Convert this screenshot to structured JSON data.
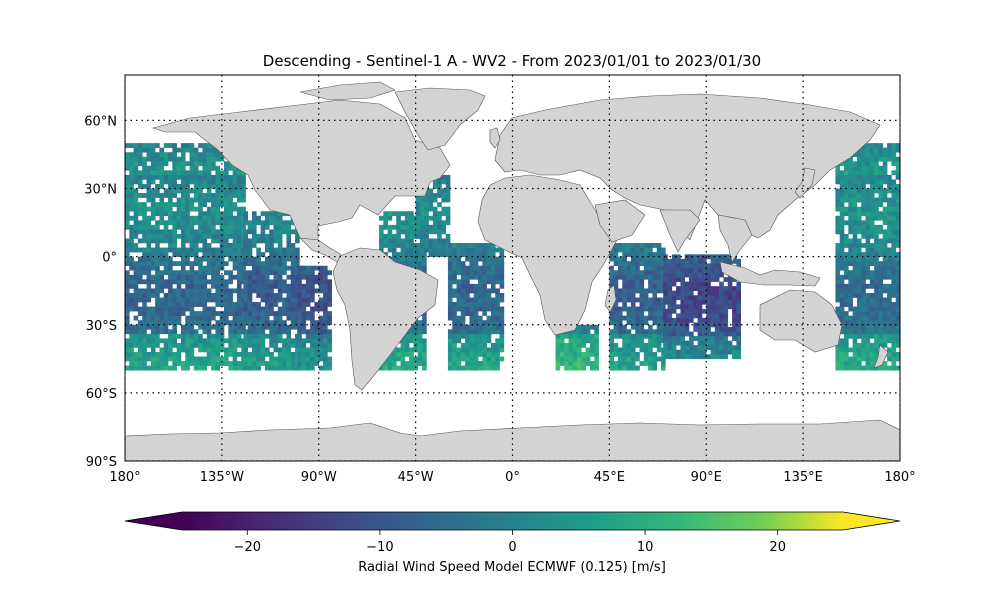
{
  "title": "Descending - Sentinel-1 A - WV2 - From 2023/01/01 to 2023/01/30",
  "map": {
    "projection": "equirectangular",
    "lon_range": [
      -180,
      180
    ],
    "lat_range": [
      -90,
      80
    ],
    "gridlines": "dotted",
    "land_color": "#d3d3d3",
    "ocean_color": "#ffffff",
    "lon_ticks": [
      {
        "value": -180,
        "label": "180°"
      },
      {
        "value": -135,
        "label": "135°W"
      },
      {
        "value": -90,
        "label": "90°W"
      },
      {
        "value": -45,
        "label": "45°W"
      },
      {
        "value": 0,
        "label": "0°"
      },
      {
        "value": 45,
        "label": "45°E"
      },
      {
        "value": 90,
        "label": "90°E"
      },
      {
        "value": 135,
        "label": "135°E"
      },
      {
        "value": 180,
        "label": "180°"
      }
    ],
    "lat_ticks": [
      {
        "value": 60,
        "label": "60°N"
      },
      {
        "value": 30,
        "label": "30°N"
      },
      {
        "value": 0,
        "label": "0°"
      },
      {
        "value": -30,
        "label": "30°S"
      },
      {
        "value": -60,
        "label": "60°S"
      },
      {
        "value": -90,
        "label": "90°S"
      }
    ],
    "data_lat_range": [
      -50,
      50
    ],
    "cell_size_deg": 2
  },
  "colorbar": {
    "label": "Radial Wind Speed Model ECMWF (0.125) [m/s]",
    "colormap": "viridis",
    "range": [
      -25,
      25
    ],
    "extend": "both",
    "ticks": [
      {
        "value": -20,
        "label": "−20"
      },
      {
        "value": -10,
        "label": "−10"
      },
      {
        "value": 0,
        "label": "0"
      },
      {
        "value": 10,
        "label": "10"
      },
      {
        "value": 20,
        "label": "20"
      }
    ]
  }
}
